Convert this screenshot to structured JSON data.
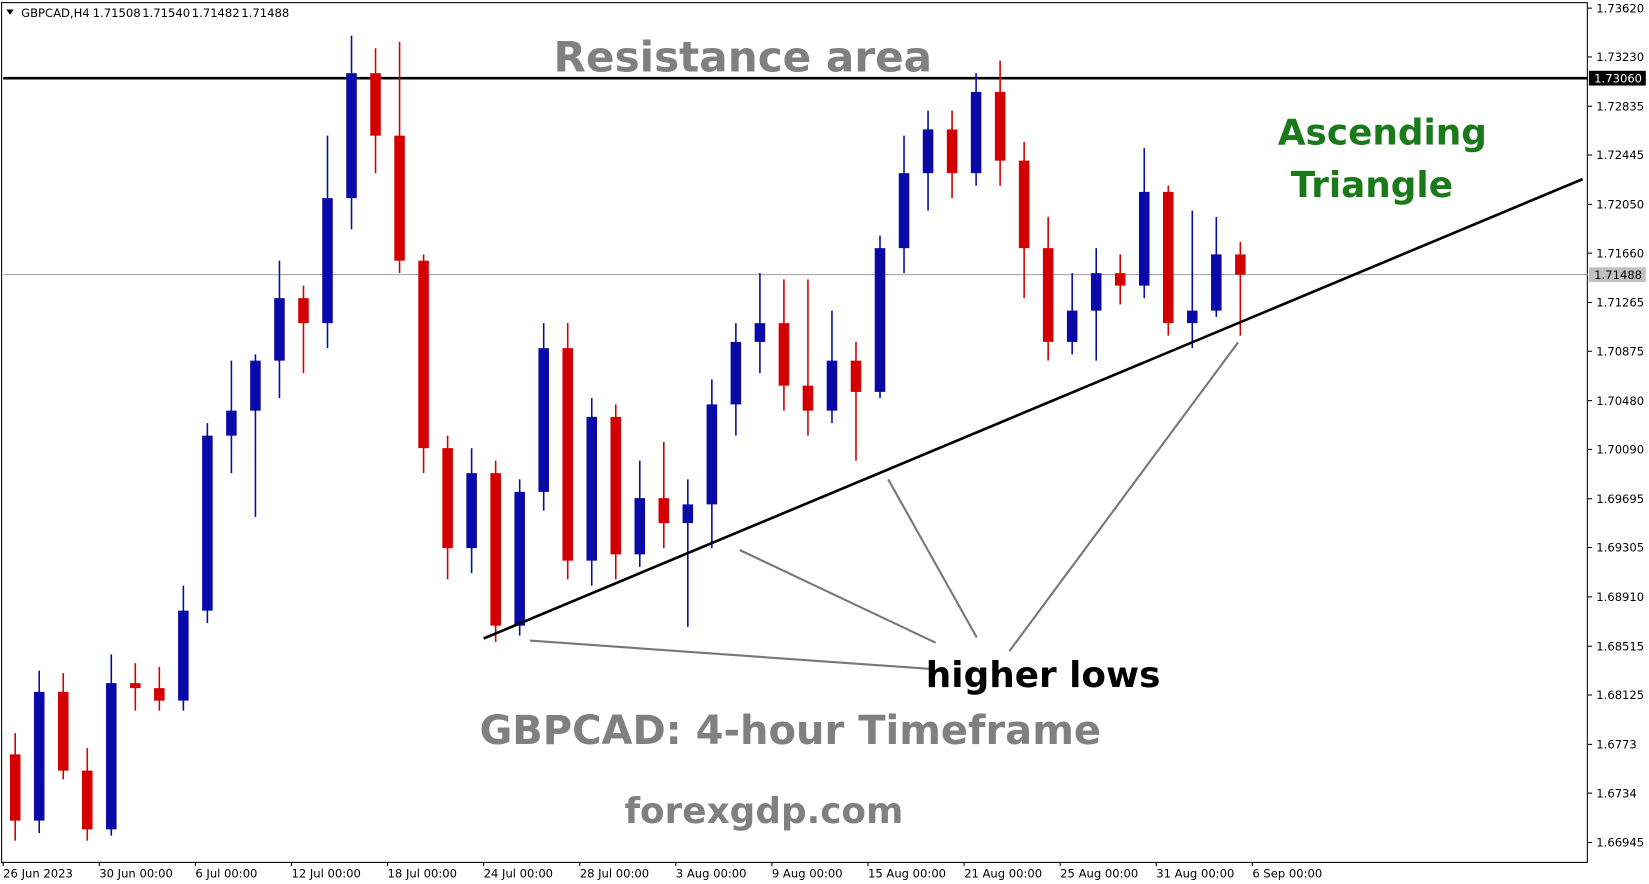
{
  "info_bar": {
    "symbol": "GBPCAD,H4",
    "ohlc": [
      "1.71508",
      "1.71540",
      "1.71482",
      "1.71488"
    ]
  },
  "annotations": {
    "resistance": "Resistance area",
    "pattern": [
      "Ascending",
      "Triangle"
    ],
    "lows": "higher lows",
    "timeframe": "GBPCAD: 4-hour Timeframe",
    "site": "forexgdp.com"
  },
  "chart_data": {
    "type": "candlestick",
    "up_color": "#0a0aa8",
    "down_color": "#d40000",
    "open": [
      1.6765,
      1.6712,
      1.6815,
      1.6752,
      1.6705,
      1.6822,
      1.6818,
      1.6808,
      1.688,
      1.702,
      1.704,
      1.708,
      1.713,
      1.711,
      1.721,
      1.731,
      1.726,
      1.716,
      1.701,
      1.693,
      1.699,
      1.6868,
      1.6975,
      1.709,
      1.692,
      1.7035,
      1.6925,
      1.697,
      1.695,
      1.6965,
      1.7045,
      1.7095,
      1.711,
      1.706,
      1.704,
      1.708,
      1.7055,
      1.717,
      1.723,
      1.7265,
      1.723,
      1.7295,
      1.724,
      1.717,
      1.7095,
      1.712,
      1.715,
      1.714,
      1.7215,
      1.711,
      1.712,
      1.7165
    ],
    "high": [
      1.6782,
      1.6832,
      1.683,
      1.677,
      1.6845,
      1.6838,
      1.6835,
      1.69,
      1.703,
      1.708,
      1.7085,
      1.716,
      1.714,
      1.726,
      1.734,
      1.733,
      1.7335,
      1.7165,
      1.702,
      1.701,
      1.7,
      1.6985,
      1.711,
      1.711,
      1.705,
      1.7045,
      1.7,
      1.7015,
      1.6985,
      1.7065,
      1.711,
      1.715,
      1.7145,
      1.7145,
      1.712,
      1.7095,
      1.718,
      1.726,
      1.728,
      1.728,
      1.731,
      1.732,
      1.7255,
      1.7195,
      1.715,
      1.717,
      1.7165,
      1.725,
      1.722,
      1.72,
      1.7195,
      1.7175
    ],
    "low": [
      1.6696,
      1.6702,
      1.6745,
      1.6696,
      1.67,
      1.68,
      1.68,
      1.68,
      1.687,
      1.699,
      1.6955,
      1.705,
      1.707,
      1.709,
      1.7185,
      1.723,
      1.715,
      1.699,
      1.6905,
      1.691,
      1.6855,
      1.686,
      1.696,
      1.6905,
      1.69,
      1.6905,
      1.6915,
      1.693,
      1.6867,
      1.693,
      1.702,
      1.707,
      1.704,
      1.702,
      1.703,
      1.7,
      1.705,
      1.715,
      1.72,
      1.721,
      1.722,
      1.722,
      1.713,
      1.708,
      1.7085,
      1.708,
      1.7125,
      1.713,
      1.71,
      1.709,
      1.7115,
      1.71
    ],
    "close": [
      1.6712,
      1.6815,
      1.6752,
      1.6705,
      1.6822,
      1.6818,
      1.6808,
      1.688,
      1.702,
      1.704,
      1.708,
      1.713,
      1.711,
      1.721,
      1.731,
      1.726,
      1.716,
      1.701,
      1.693,
      1.699,
      1.6868,
      1.6975,
      1.709,
      1.692,
      1.7035,
      1.6925,
      1.697,
      1.695,
      1.6965,
      1.7045,
      1.7095,
      1.711,
      1.706,
      1.704,
      1.708,
      1.7055,
      1.717,
      1.723,
      1.7265,
      1.723,
      1.7295,
      1.724,
      1.717,
      1.7095,
      1.712,
      1.715,
      1.714,
      1.7215,
      1.711,
      1.712,
      1.7165,
      1.71488
    ],
    "ylim": [
      1.6679,
      1.7366
    ],
    "yticks": [
      1.66945,
      1.6734,
      1.6773,
      1.68125,
      1.68515,
      {
        "value": 1.6891,
        "label": "1.68910"
      },
      1.69305,
      1.69695,
      {
        "value": 1.7009,
        "label": "1.70090"
      },
      {
        "value": 1.7048,
        "label": "1.70480"
      },
      1.70875,
      1.71265,
      {
        "value": 1.7166,
        "label": "1.71660"
      },
      {
        "value": 1.7205,
        "label": "1.72050"
      },
      1.72445,
      1.72835,
      {
        "value": 1.7323,
        "label": "1.73230"
      },
      {
        "value": 1.7362,
        "label": "1.73620"
      }
    ],
    "xlim": [
      0,
      395.8
    ],
    "xticks": [
      {
        "value": 0,
        "label": "26 Jun 2023"
      },
      {
        "value": 24,
        "label": "30 Jun 00:00"
      },
      {
        "value": 48,
        "label": "6 Jul 00:00"
      },
      {
        "value": 72,
        "label": "12 Jul 00:00"
      },
      {
        "value": 96,
        "label": "18 Jul 00:00"
      },
      {
        "value": 120,
        "label": "24 Jul 00:00"
      },
      {
        "value": 144,
        "label": "28 Jul 00:00"
      },
      {
        "value": 168,
        "label": "3 Aug 00:00"
      },
      {
        "value": 192,
        "label": "9 Aug 00:00"
      },
      {
        "value": 216,
        "label": "15 Aug 00:00"
      },
      {
        "value": 240,
        "label": "21 Aug 00:00"
      },
      {
        "value": 264,
        "label": "25 Aug 00:00"
      },
      {
        "value": 288,
        "label": "31 Aug 00:00"
      },
      {
        "value": 312,
        "label": "6 Sep 00:00"
      }
    ],
    "resistance_line": {
      "value": 1.7306,
      "label": "1.73060"
    },
    "price_line": {
      "value": 1.71488,
      "label": "1.71488"
    }
  }
}
